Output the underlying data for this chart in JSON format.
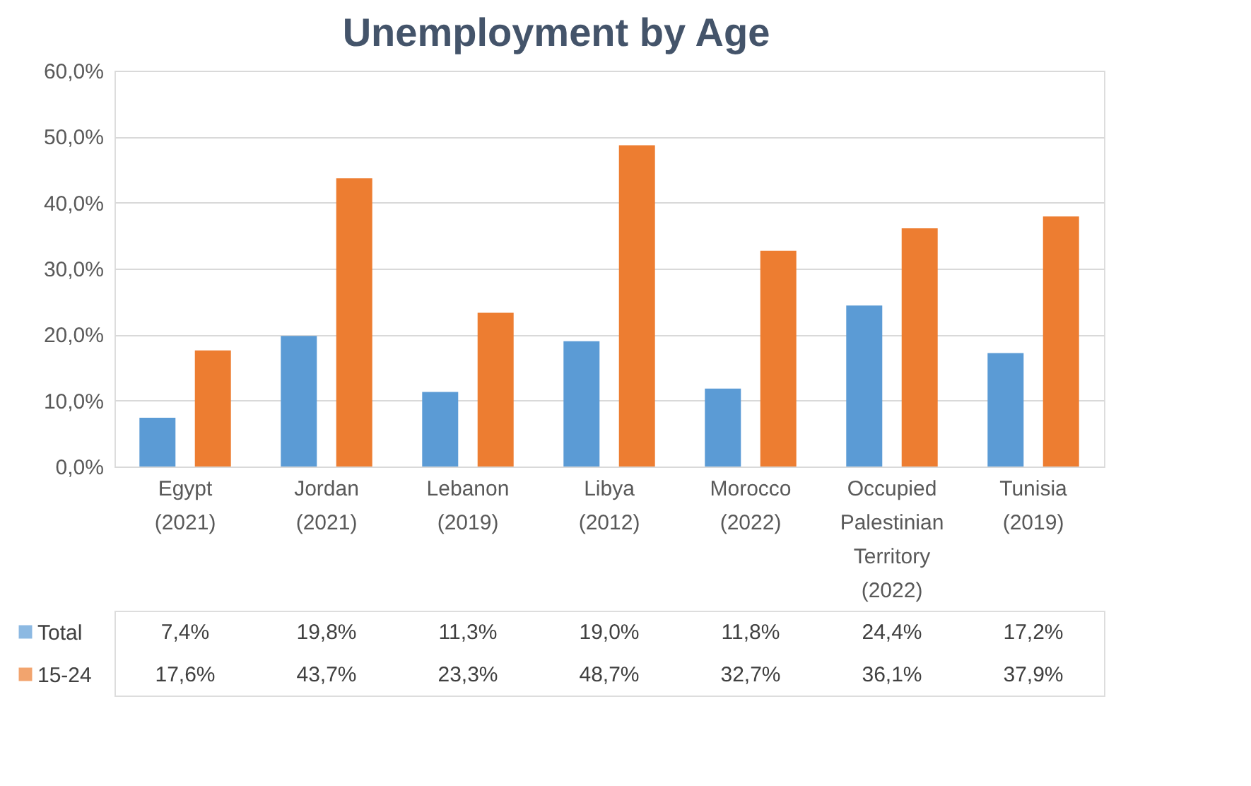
{
  "chart_data": {
    "type": "bar",
    "title": "Unemployment by Age",
    "categories": [
      "Egypt (2021)",
      "Jordan (2021)",
      "Lebanon (2019)",
      "Libya (2012)",
      "Morocco (2022)",
      "Occupied Palestinian Territory (2022)",
      "Tunisia (2019)"
    ],
    "series": [
      {
        "name": "Total",
        "color": "#5b9bd5",
        "values": [
          7.4,
          19.8,
          11.3,
          19.0,
          11.8,
          24.4,
          17.2
        ],
        "value_labels": [
          "7,4%",
          "19,8%",
          "11,3%",
          "19,0%",
          "11,8%",
          "24,4%",
          "17,2%"
        ]
      },
      {
        "name": "15-24",
        "color": "#ed7d31",
        "values": [
          17.6,
          43.7,
          23.3,
          48.7,
          32.7,
          36.1,
          37.9
        ],
        "value_labels": [
          "17,6%",
          "43,7%",
          "23,3%",
          "48,7%",
          "32,7%",
          "36,1%",
          "37,9%"
        ]
      }
    ],
    "ylim": [
      0,
      60
    ],
    "yticks": [
      {
        "value": 0,
        "label": "0,0%"
      },
      {
        "value": 10,
        "label": "10,0%"
      },
      {
        "value": 20,
        "label": "20,0%"
      },
      {
        "value": 30,
        "label": "30,0%"
      },
      {
        "value": 40,
        "label": "40,0%"
      },
      {
        "value": 50,
        "label": "50,0%"
      },
      {
        "value": 60,
        "label": "60,0%"
      }
    ],
    "grid": "y",
    "legend": "bottom"
  }
}
